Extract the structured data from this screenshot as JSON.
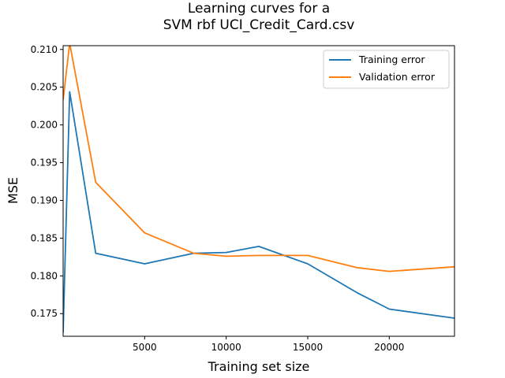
{
  "chart_data": {
    "type": "line",
    "title": [
      "Learning curves for a",
      "SVM rbf UCI_Credit_Card.csv"
    ],
    "xlabel": "Training set size",
    "ylabel": "MSE",
    "xlim": [
      0,
      24000
    ],
    "ylim": [
      0.172,
      0.2105
    ],
    "xticks": [
      5000,
      10000,
      15000,
      20000
    ],
    "xtick_labels": [
      "5000",
      "10000",
      "15000",
      "20000"
    ],
    "yticks": [
      0.175,
      0.18,
      0.185,
      0.19,
      0.195,
      0.2,
      0.205,
      0.21
    ],
    "ytick_labels": [
      "0.175",
      "0.180",
      "0.185",
      "0.190",
      "0.195",
      "0.200",
      "0.205",
      "0.210"
    ],
    "grid": false,
    "legend_position": "top-right",
    "series": [
      {
        "name": "Training error",
        "color": "#1f77b4",
        "x": [
          0,
          400,
          2000,
          5000,
          8000,
          10000,
          12000,
          15000,
          18000,
          20000,
          24000
        ],
        "y": [
          0.1725,
          0.2044,
          0.183,
          0.1816,
          0.183,
          0.1831,
          0.1839,
          0.1816,
          0.1778,
          0.1756,
          0.1744
        ]
      },
      {
        "name": "Validation error",
        "color": "#ff7f0e",
        "x": [
          0,
          400,
          2000,
          5000,
          8000,
          10000,
          12000,
          15000,
          18000,
          20000,
          24000
        ],
        "y": [
          0.2033,
          0.2108,
          0.1924,
          0.1857,
          0.183,
          0.1826,
          0.1827,
          0.1827,
          0.1811,
          0.1806,
          0.1812
        ]
      }
    ]
  }
}
